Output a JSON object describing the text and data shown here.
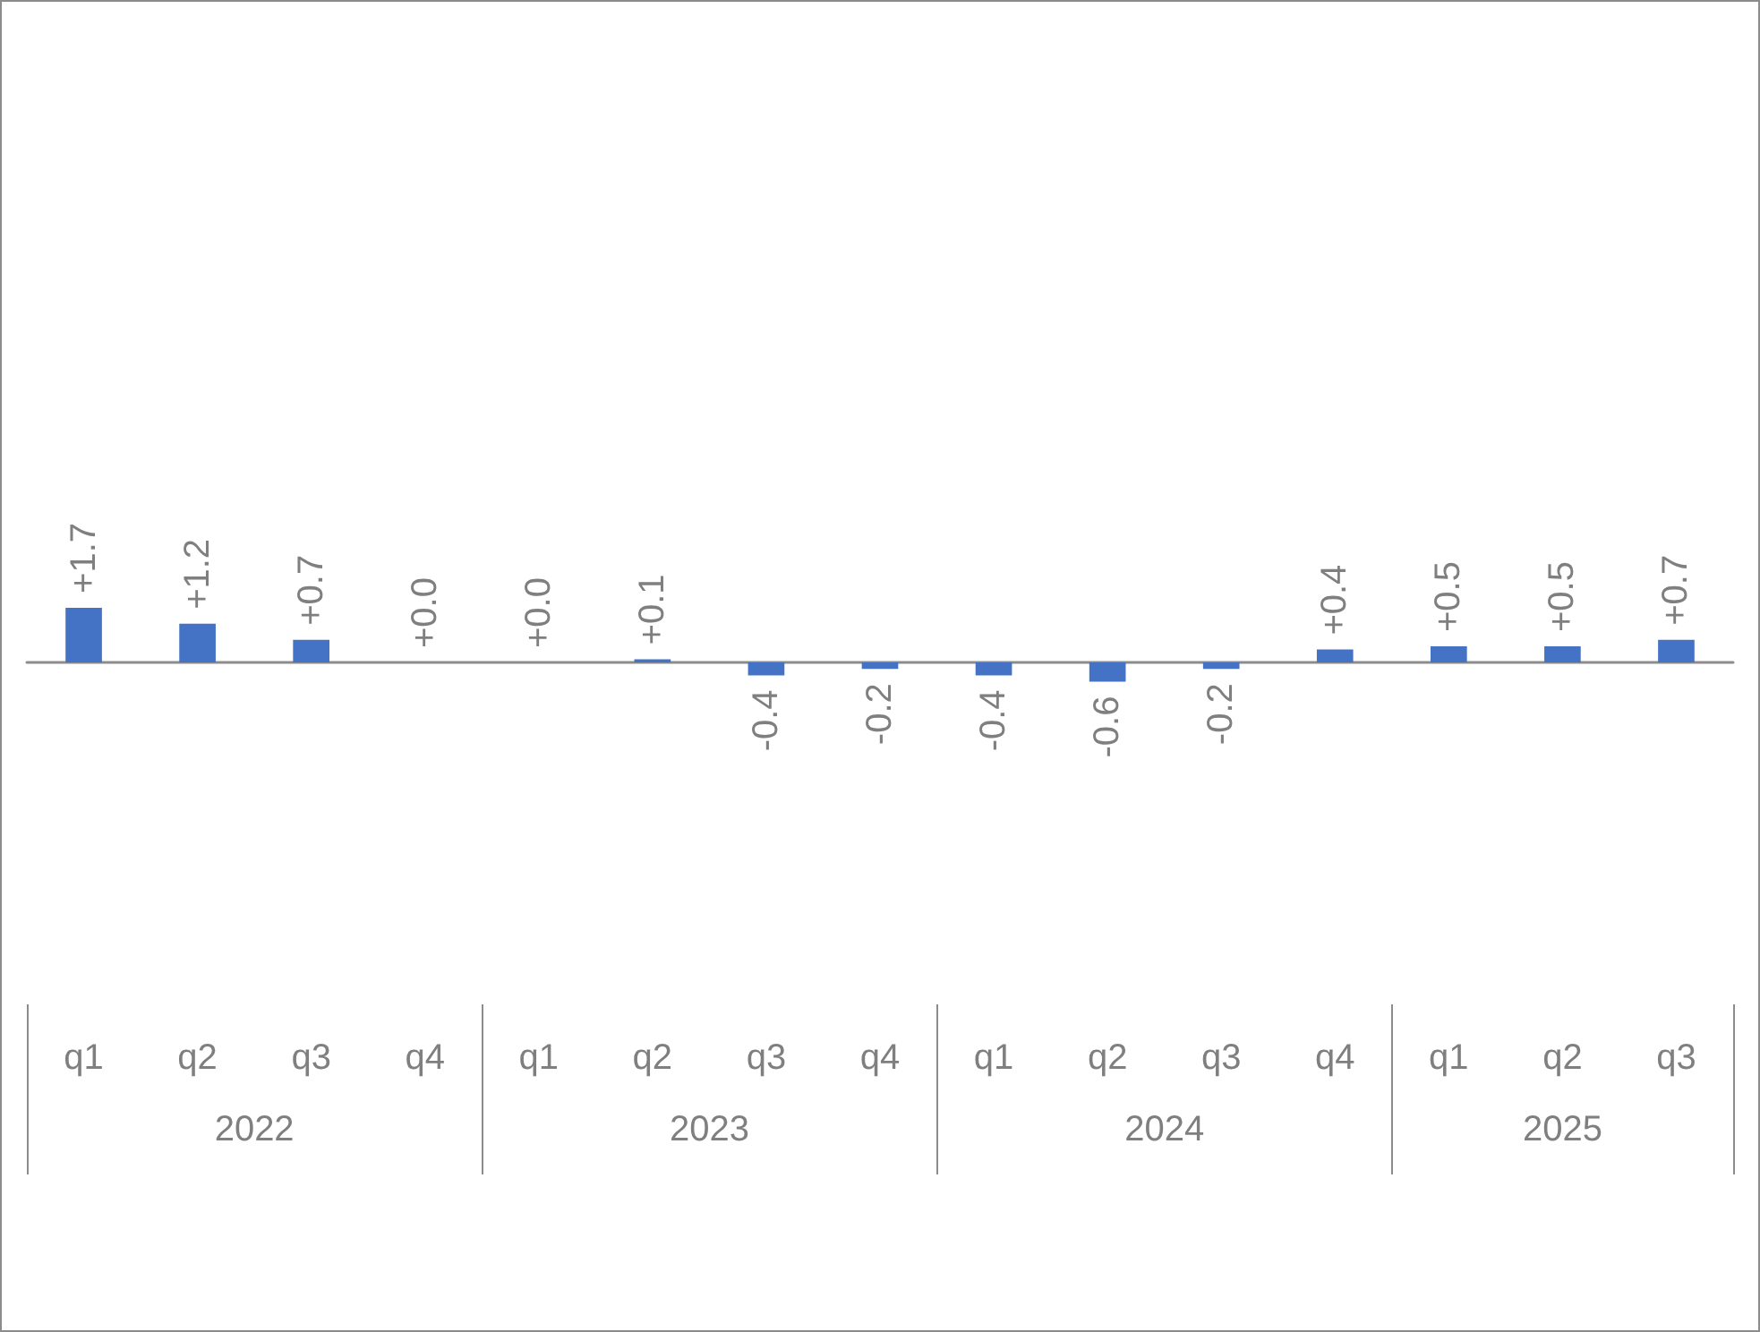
{
  "chart_data": {
    "type": "bar",
    "categories": [
      "q1",
      "q2",
      "q3",
      "q4",
      "q1",
      "q2",
      "q3",
      "q4",
      "q1",
      "q2",
      "q3",
      "q4",
      "q1",
      "q2",
      "q3"
    ],
    "values": [
      1.7,
      1.2,
      0.7,
      0.0,
      0.0,
      0.1,
      -0.4,
      -0.2,
      -0.4,
      -0.6,
      -0.2,
      0.4,
      0.5,
      0.5,
      0.7
    ],
    "value_labels": [
      "+1.7",
      "+1.2",
      "+0.7",
      "+0.0",
      "+0.0",
      "+0.1",
      "-0.4",
      "-0.2",
      "-0.4",
      "-0.6",
      "-0.2",
      "+0.4",
      "+0.5",
      "+0.5",
      "+0.7"
    ],
    "color": "#4472c4",
    "annotations": [
      "2022",
      "2023",
      "2024",
      "2025"
    ]
  }
}
